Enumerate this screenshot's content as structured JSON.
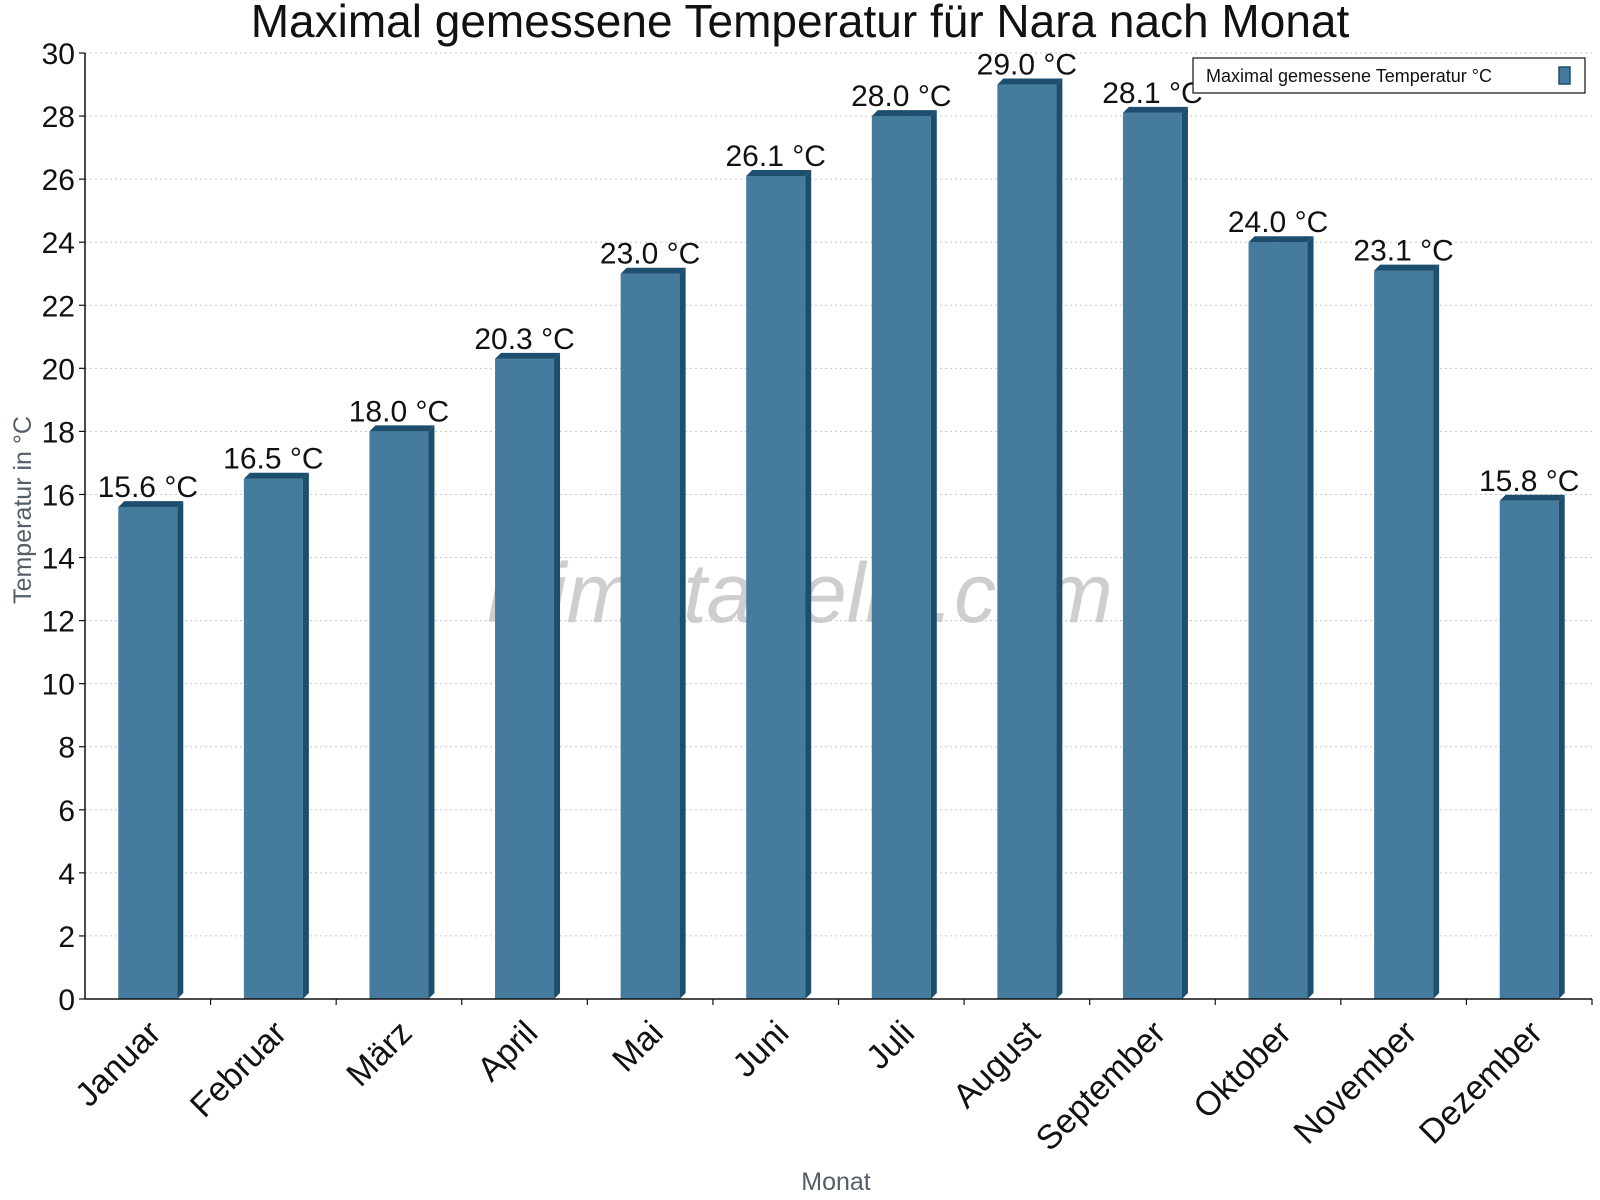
{
  "chart_data": {
    "type": "bar",
    "title": "Maximal gemessene Temperatur für Nara nach Monat",
    "xlabel": "Monat",
    "ylabel": "Temperatur in °C",
    "categories": [
      "Januar",
      "Februar",
      "März",
      "April",
      "Mai",
      "Juni",
      "Juli",
      "August",
      "September",
      "Oktober",
      "November",
      "Dezember"
    ],
    "series": [
      {
        "name": "Maximal gemessene Temperatur °C",
        "values": [
          15.6,
          16.5,
          18.0,
          20.3,
          23.0,
          26.1,
          28.0,
          29.0,
          28.1,
          24.0,
          23.1,
          15.8
        ],
        "labels": [
          "15.6 °C",
          "16.5 °C",
          "18.0 °C",
          "20.3 °C",
          "23.0 °C",
          "26.1 °C",
          "28.0 °C",
          "29.0 °C",
          "28.1 °C",
          "24.0 °C",
          "23.1 °C",
          "15.8 °C"
        ]
      }
    ],
    "ylim": [
      0,
      30
    ],
    "yticks": [
      0,
      2,
      4,
      6,
      8,
      10,
      12,
      14,
      16,
      18,
      20,
      22,
      24,
      26,
      28,
      30
    ],
    "grid": true,
    "legend_position": "top-right",
    "colors": {
      "bar": "#457b9d",
      "bar_dark": "#1d4e6e"
    },
    "watermark": "klimatabelle.com"
  }
}
